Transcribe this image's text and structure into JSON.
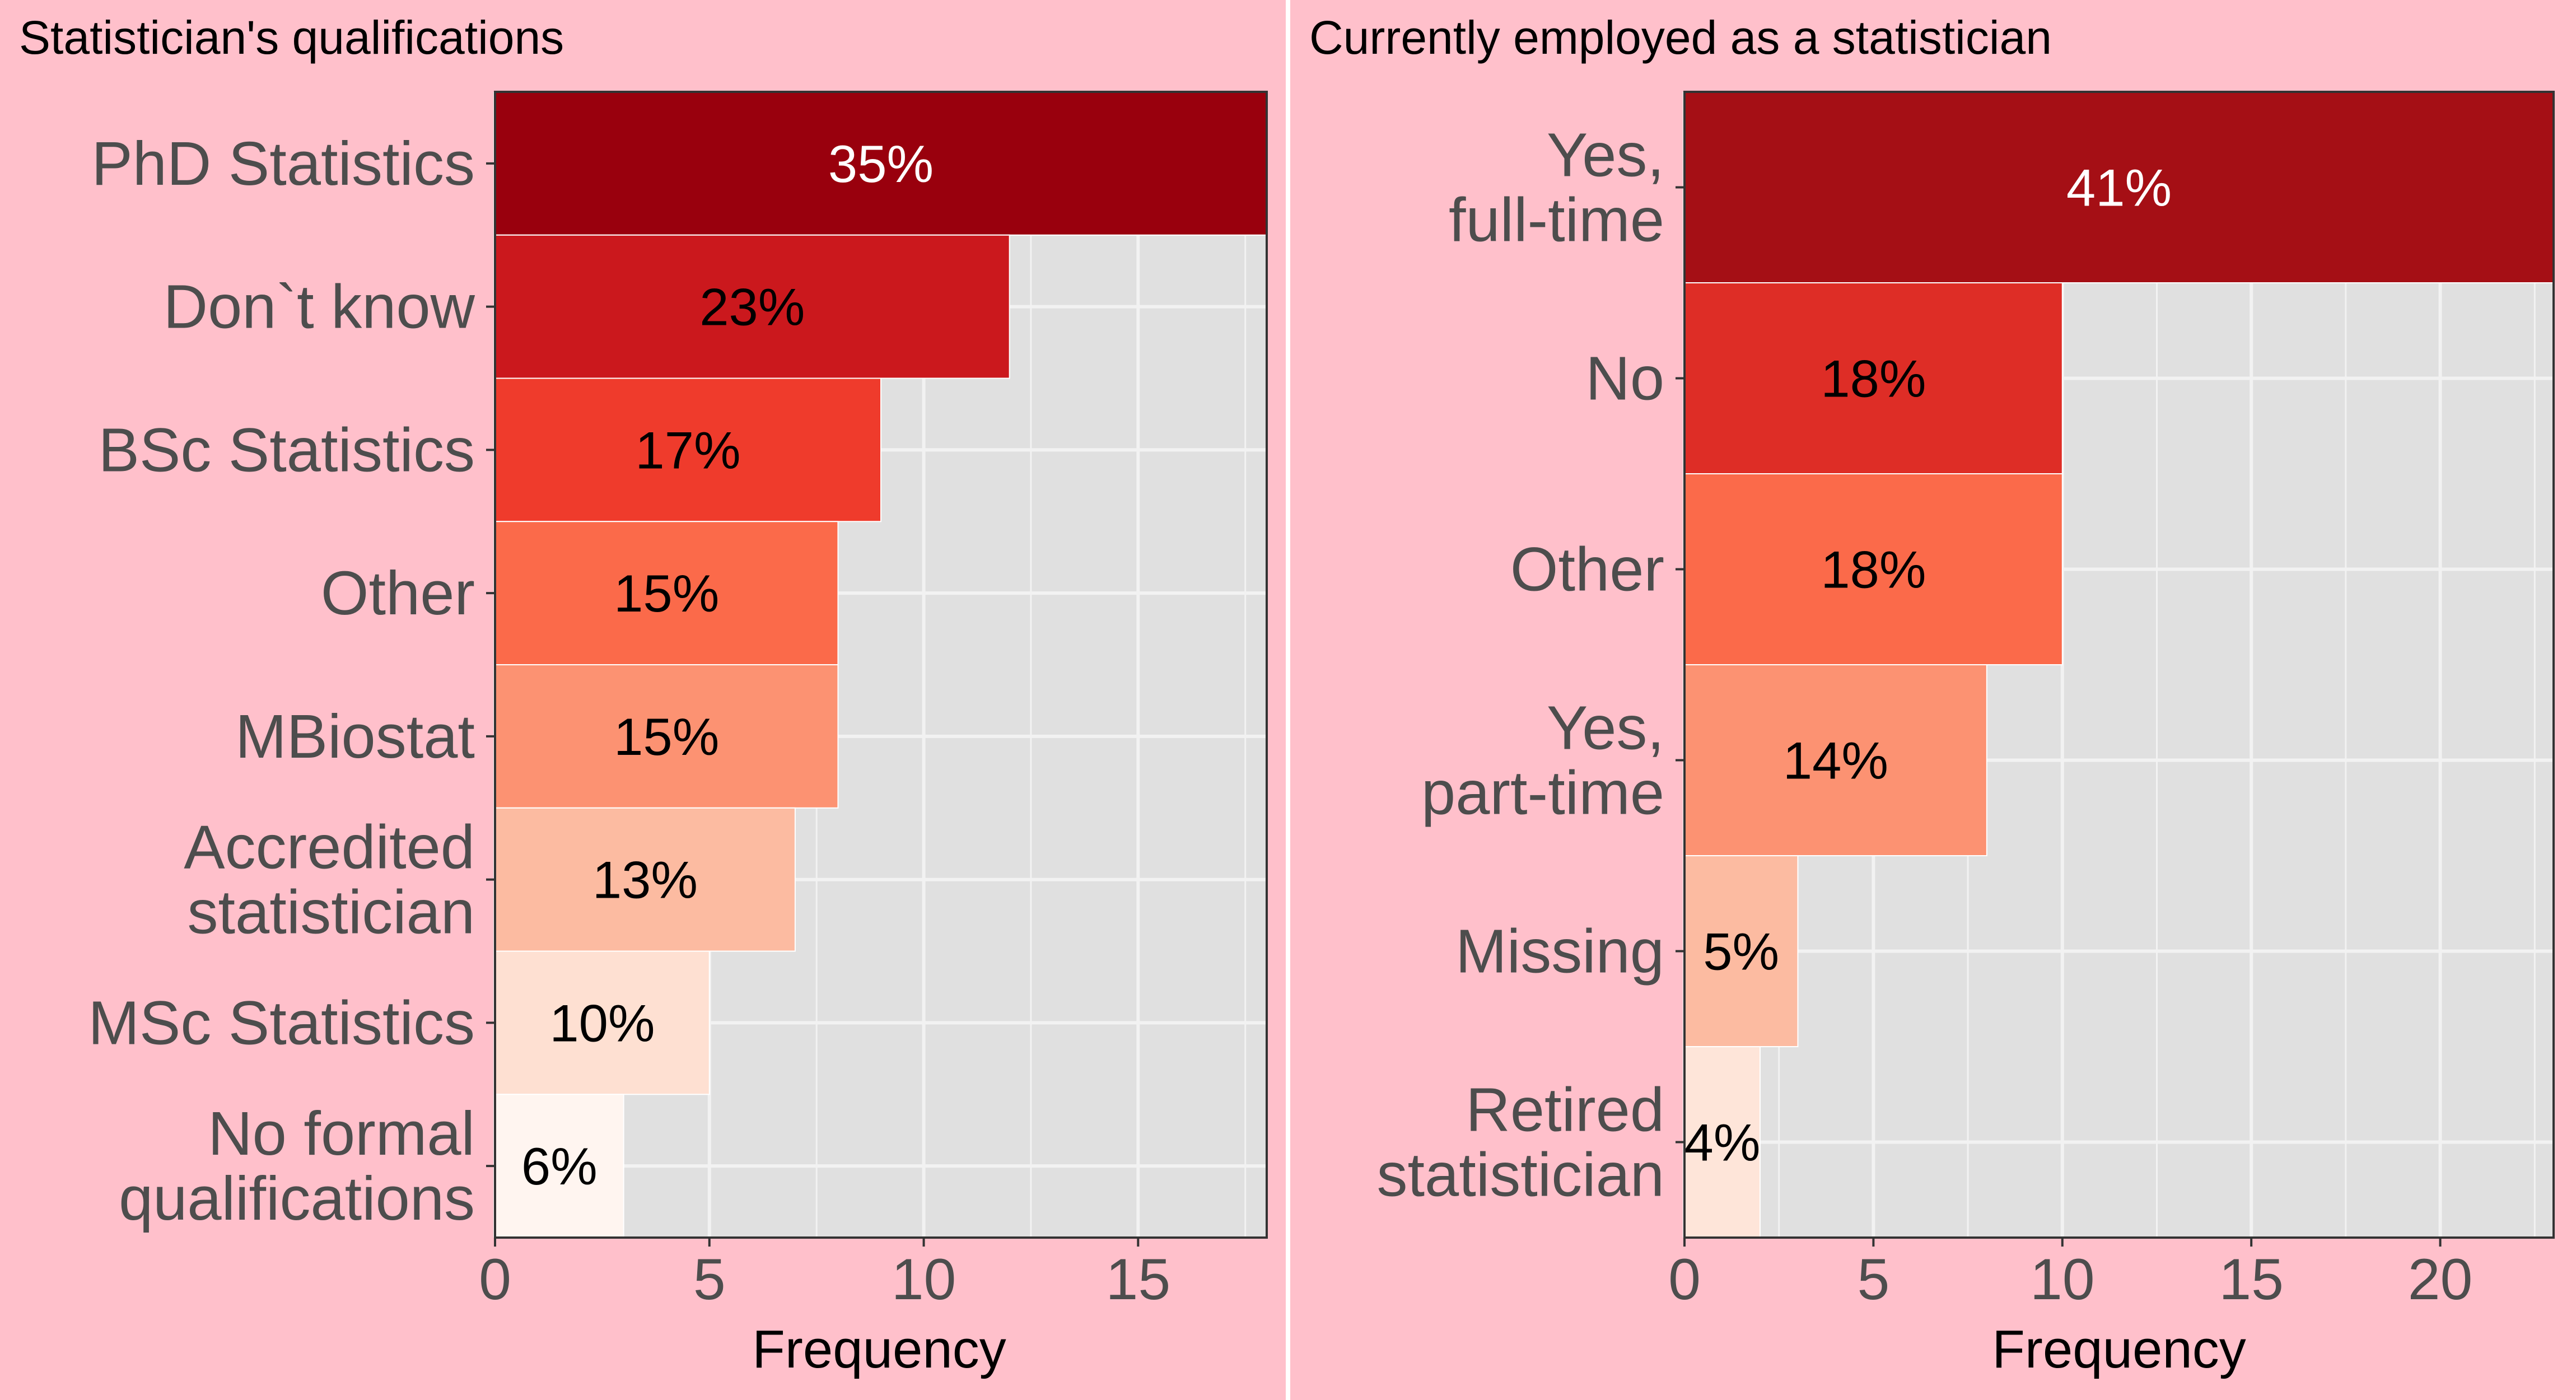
{
  "colors": {
    "plot_background": "#ffc0cb",
    "panel_background": "#e0e0e0",
    "grid": "#f2f2f2"
  },
  "chart_data": [
    {
      "type": "bar",
      "orientation": "horizontal",
      "title": "Statistician's qualifications",
      "xlabel": "Frequency",
      "xlim": [
        0,
        18
      ],
      "xticks": [
        0,
        5,
        10,
        15
      ],
      "grid": true,
      "legend": "none",
      "categories": [
        [
          "PhD Statistics"
        ],
        [
          "Don`t know"
        ],
        [
          "BSc Statistics"
        ],
        [
          "Other"
        ],
        [
          "MBiostat"
        ],
        [
          "Accredited",
          "statistician"
        ],
        [
          "MSc Statistics"
        ],
        [
          "No formal",
          "qualifications"
        ]
      ],
      "values": [
        18,
        12,
        9,
        8,
        8,
        7,
        5,
        3
      ],
      "bar_labels": [
        "35%",
        "23%",
        "17%",
        "15%",
        "15%",
        "13%",
        "10%",
        "6%"
      ],
      "bar_colors": [
        "#99000d",
        "#cb181d",
        "#ef3b2c",
        "#fb6a4a",
        "#fc9272",
        "#fcbba1",
        "#fee0d2",
        "#fff5f0"
      ],
      "label_colors": [
        "#ffffff",
        "#000000",
        "#000000",
        "#000000",
        "#000000",
        "#000000",
        "#000000",
        "#000000"
      ]
    },
    {
      "type": "bar",
      "orientation": "horizontal",
      "title": "Currently employed as a statistician",
      "xlabel": "Frequency",
      "xlim": [
        0,
        23
      ],
      "xticks": [
        0,
        5,
        10,
        15,
        20
      ],
      "grid": true,
      "legend": "none",
      "categories": [
        [
          "Yes,",
          "full-time"
        ],
        [
          "No"
        ],
        [
          "Other"
        ],
        [
          "Yes,",
          "part-time"
        ],
        [
          "Missing"
        ],
        [
          "Retired",
          "statistician"
        ]
      ],
      "values": [
        23,
        10,
        10,
        8,
        3,
        2
      ],
      "bar_labels": [
        "41%",
        "18%",
        "18%",
        "14%",
        "5%",
        "4%"
      ],
      "bar_colors": [
        "#a50f15",
        "#de2d26",
        "#fb6a4a",
        "#fc9272",
        "#fcbba1",
        "#fee5d9"
      ],
      "label_colors": [
        "#ffffff",
        "#000000",
        "#000000",
        "#000000",
        "#000000",
        "#000000"
      ]
    }
  ]
}
